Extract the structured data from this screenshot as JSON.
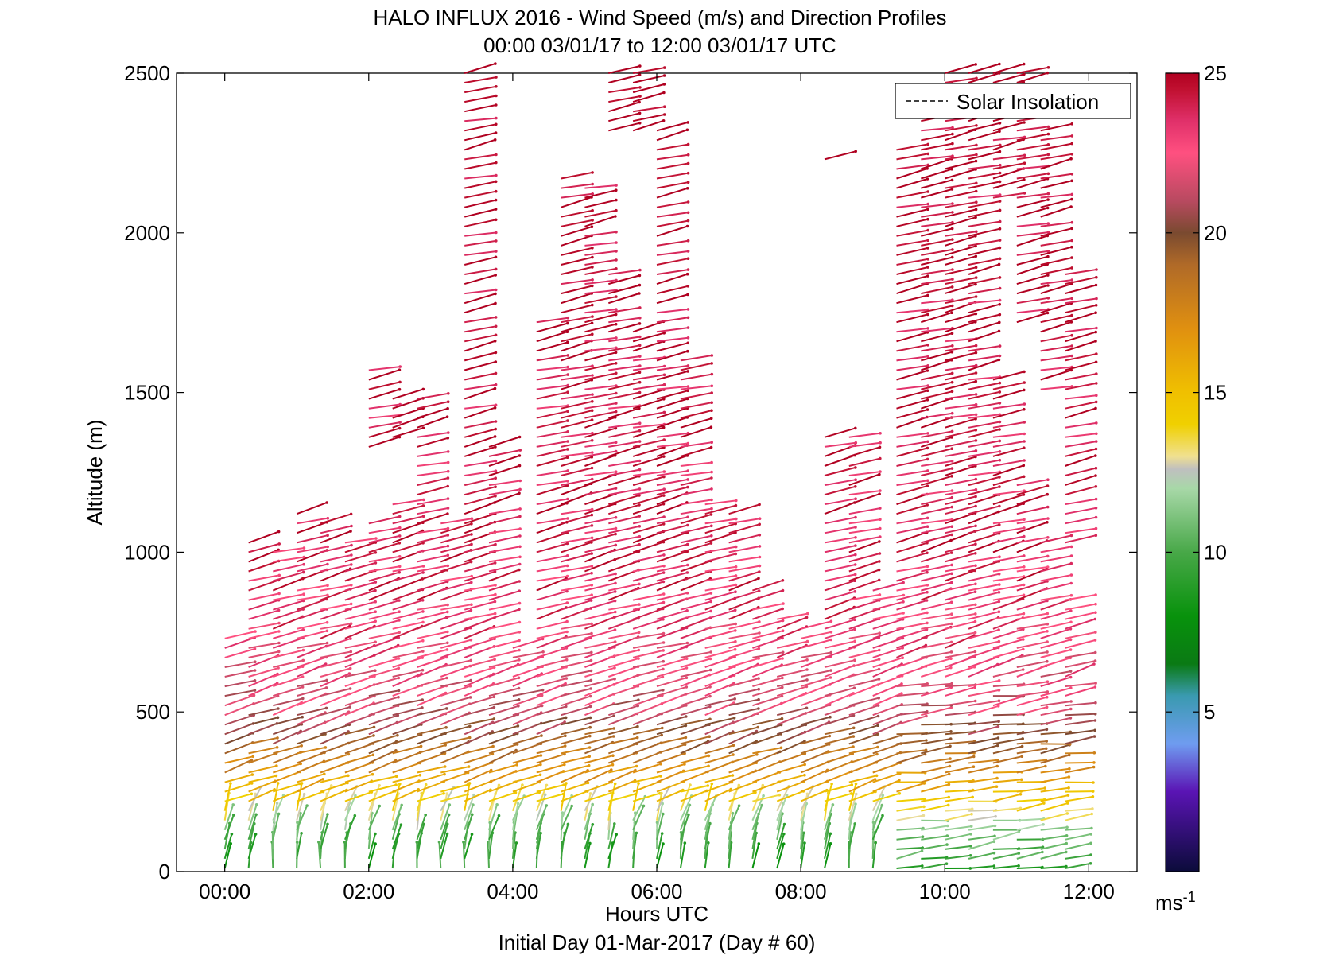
{
  "chart_data": {
    "type": "quiver",
    "title": "HALO INFLUX 2016 - Wind Speed (m/s) and Direction Profiles",
    "subtitle": "00:00 03/01/17 to 12:00 03/01/17  UTC",
    "xlabel": "Hours UTC",
    "xlabel2": "Initial Day 01-Mar-2017 (Day # 60)",
    "ylabel": "Altitude (m)",
    "xlim": [
      -0.67,
      12.67
    ],
    "ylim": [
      0,
      2500
    ],
    "x_ticks": [
      0,
      2,
      4,
      6,
      8,
      10,
      12
    ],
    "x_tick_labels": [
      "00:00",
      "02:00",
      "04:00",
      "06:00",
      "08:00",
      "10:00",
      "12:00"
    ],
    "y_ticks": [
      0,
      500,
      1000,
      1500,
      2000,
      2500
    ],
    "y_tick_labels": [
      "0",
      "500",
      "1000",
      "1500",
      "2000",
      "2500"
    ],
    "legend": {
      "label": "Solar Insolation",
      "placement": "top-right",
      "line_style": "dashed"
    },
    "colorbar": {
      "min": 0,
      "max": 25,
      "ticks": [
        5,
        10,
        15,
        20,
        25
      ],
      "tick_labels": [
        "5",
        "10",
        "15",
        "20",
        "25"
      ],
      "unit_label": "ms",
      "unit_exponent": "-1",
      "stops": [
        {
          "v": 0,
          "c": "#0b0b3a"
        },
        {
          "v": 2.5,
          "c": "#5a14b4"
        },
        {
          "v": 4,
          "c": "#6f9cf0"
        },
        {
          "v": 5.5,
          "c": "#3a9ab0"
        },
        {
          "v": 6.5,
          "c": "#0a7a14"
        },
        {
          "v": 8,
          "c": "#08920c"
        },
        {
          "v": 10,
          "c": "#48a848"
        },
        {
          "v": 12,
          "c": "#a8d8a8"
        },
        {
          "v": 12.6,
          "c": "#bfbfbf"
        },
        {
          "v": 13,
          "c": "#f0e090"
        },
        {
          "v": 14,
          "c": "#f0d000"
        },
        {
          "v": 15,
          "c": "#f0c000"
        },
        {
          "v": 17,
          "c": "#e09010"
        },
        {
          "v": 19,
          "c": "#b06a28"
        },
        {
          "v": 20,
          "c": "#7a4a30"
        },
        {
          "v": 21,
          "c": "#b84a60"
        },
        {
          "v": 22.5,
          "c": "#ff5080"
        },
        {
          "v": 23.5,
          "c": "#e0306a"
        },
        {
          "v": 24.5,
          "c": "#c01030"
        },
        {
          "v": 25,
          "c": "#b00020"
        }
      ]
    },
    "profile_times_hours": [
      0,
      0.33,
      0.67,
      1.0,
      1.33,
      1.67,
      2.0,
      2.33,
      2.67,
      3.0,
      3.33,
      3.67,
      4.0,
      4.33,
      4.67,
      5.0,
      5.33,
      5.67,
      6.0,
      6.33,
      6.67,
      7.0,
      7.33,
      7.67,
      8.0,
      8.33,
      8.67,
      9.0,
      9.33,
      9.67,
      10.0,
      10.33,
      10.67,
      11.0,
      11.33,
      11.67
    ],
    "profile_top_altitudes_m": [
      740,
      1040,
      1020,
      1130,
      1090,
      1030,
      1570,
      1490,
      1500,
      1090,
      2500,
      1330,
      700,
      1740,
      2170,
      2160,
      2500,
      2500,
      2330,
      1610,
      1170,
      1130,
      880,
      800,
      760,
      2250,
      1370,
      890,
      2270,
      2450,
      2500,
      2500,
      2500,
      2500,
      2330,
      1880
    ],
    "profile_gaps_m": [
      [],
      [],
      [],
      [],
      [],
      [],
      [
        [
          1100,
          1320
        ]
      ],
      [
        [
          1180,
          1330
        ]
      ],
      [],
      [],
      [],
      [],
      [],
      [],
      [],
      [],
      [
        [
          1900,
          2300
        ]
      ],
      [
        [
          1700,
          2300
        ]
      ],
      [],
      [],
      [],
      [],
      [],
      [],
      [],
      [
        [
          1380,
          2200
        ]
      ],
      [],
      [],
      [],
      [],
      [],
      [],
      [
        [
          1550,
          2100
        ]
      ],
      [
        [
          1220,
          1700
        ]
      ],
      [
        [
          1050,
          1490
        ]
      ],
      [
        [
          870,
          1000
        ]
      ]
    ],
    "sample_spacing_m": 30,
    "speed_profile_ms": [
      {
        "altitude_m": 0,
        "speed_ms": 9
      },
      {
        "altitude_m": 100,
        "speed_ms": 10.5
      },
      {
        "altitude_m": 200,
        "speed_ms": 14
      },
      {
        "altitude_m": 300,
        "speed_ms": 17
      },
      {
        "altitude_m": 400,
        "speed_ms": 19.5
      },
      {
        "altitude_m": 500,
        "speed_ms": 21.5
      },
      {
        "altitude_m": 700,
        "speed_ms": 23
      },
      {
        "altitude_m": 1000,
        "speed_ms": 24
      },
      {
        "altitude_m": 2500,
        "speed_ms": 25
      }
    ],
    "direction_note": "westerly to south-westerly flow, vectors point toward upper right"
  }
}
